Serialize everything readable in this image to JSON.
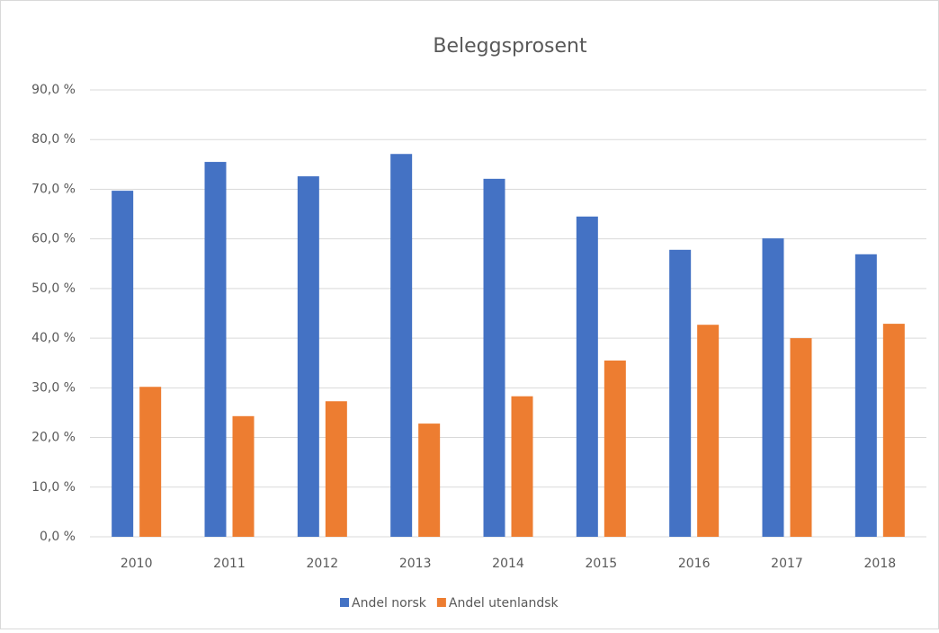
{
  "chart_data": {
    "type": "bar",
    "title": "Beleggsprosent",
    "categories": [
      "2010",
      "2011",
      "2012",
      "2013",
      "2014",
      "2015",
      "2016",
      "2017",
      "2018"
    ],
    "series": [
      {
        "name": "Andel norsk",
        "color": "#4472c4",
        "values": [
          69.7,
          75.5,
          72.6,
          77.1,
          72.1,
          64.5,
          57.8,
          60.1,
          56.9
        ]
      },
      {
        "name": "Andel utenlandsk",
        "color": "#ed7d31",
        "values": [
          30.2,
          24.3,
          27.3,
          22.8,
          28.3,
          35.5,
          42.7,
          40.0,
          42.9
        ]
      }
    ],
    "ylim": [
      0,
      90
    ],
    "yticks": [
      {
        "value": 0,
        "label": "0,0 %"
      },
      {
        "value": 10,
        "label": "10,0 %"
      },
      {
        "value": 20,
        "label": "20,0 %"
      },
      {
        "value": 30,
        "label": "30,0 %"
      },
      {
        "value": 40,
        "label": "40,0 %"
      },
      {
        "value": 50,
        "label": "50,0 %"
      },
      {
        "value": 60,
        "label": "60,0 %"
      },
      {
        "value": 70,
        "label": "70,0 %"
      },
      {
        "value": 80,
        "label": "80,0 %"
      },
      {
        "value": 90,
        "label": "90,0 %"
      }
    ],
    "grid": true,
    "legend": "bottom"
  }
}
